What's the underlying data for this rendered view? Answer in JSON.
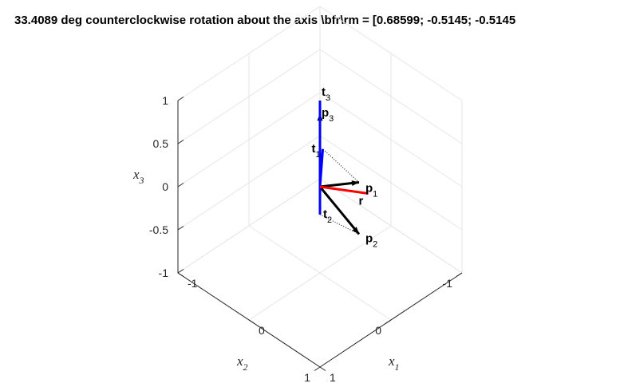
{
  "chart_data": {
    "type": "vector-3d",
    "title": "33.4089 deg counterclockwise rotation about the axis \\bfr\\rm = [0.68599; -0.5145; -0.5145",
    "axes": {
      "x1": {
        "label": "x",
        "sub": "1",
        "ticks": [
          "-1",
          "0",
          "1"
        ],
        "lim": [
          -1,
          1
        ]
      },
      "x2": {
        "label": "x",
        "sub": "2",
        "ticks": [
          "-1",
          "0",
          "1"
        ],
        "lim": [
          -1,
          1
        ]
      },
      "x3": {
        "label": "x",
        "sub": "3",
        "ticks": [
          "-1",
          "-0.5",
          "0",
          "0.5",
          "1"
        ],
        "lim": [
          -1,
          1
        ]
      }
    },
    "grid": true,
    "vectors": [
      {
        "name": "p",
        "sub": "1",
        "color": "#000000",
        "from": [
          0,
          0,
          0
        ],
        "to": [
          0,
          -0.55,
          -0.25
        ]
      },
      {
        "name": "p",
        "sub": "2",
        "color": "#000000",
        "from": [
          0,
          0,
          0
        ],
        "to": [
          0.55,
          0,
          -0.25
        ]
      },
      {
        "name": "p",
        "sub": "3",
        "color": "#000000",
        "from": [
          0,
          0,
          0
        ],
        "to": [
          0,
          0,
          0.85
        ]
      },
      {
        "name": "t",
        "sub": "1",
        "color": "#0000ff",
        "from": [
          0,
          0,
          0
        ],
        "to": [
          -0.38,
          -0.42,
          0
        ]
      },
      {
        "name": "t",
        "sub": "2",
        "color": "#0000ff",
        "from": [
          0,
          0,
          0
        ],
        "to": [
          0.25,
          0.25,
          -0.05
        ]
      },
      {
        "name": "t",
        "sub": "3",
        "color": "#0000ff",
        "from": [
          0,
          0,
          0
        ],
        "to": [
          0,
          0,
          1.0
        ]
      },
      {
        "name": "r",
        "sub": "",
        "color": "#ff0000",
        "from": [
          0,
          0,
          0
        ],
        "to": [
          0.0,
          -0.68,
          -0.45
        ]
      }
    ]
  }
}
